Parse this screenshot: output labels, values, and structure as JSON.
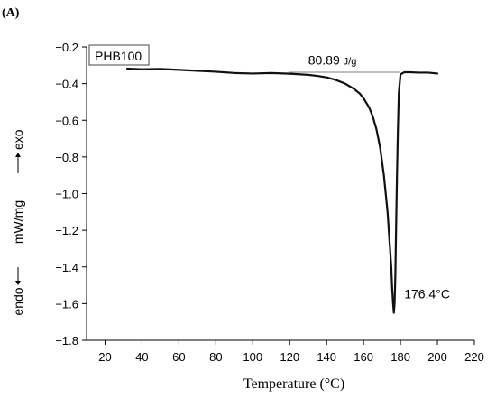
{
  "chart_data": {
    "type": "line",
    "panel_label": "(A)",
    "legend": "PHB100",
    "xlabel": "Temperature (°C)",
    "ylabel": {
      "left": "endo",
      "middle": "mW/mg",
      "right": "exo"
    },
    "xlim": [
      10,
      220
    ],
    "ylim": [
      -1.8,
      -0.2
    ],
    "xticks": [
      20,
      40,
      60,
      80,
      100,
      120,
      140,
      160,
      180,
      200,
      220
    ],
    "yticks": [
      -0.2,
      -0.4,
      -0.6,
      -0.8,
      -1.0,
      -1.2,
      -1.4,
      -1.6,
      -1.8
    ],
    "ytick_labels": [
      "−0.2",
      "−0.4",
      "−0.6",
      "−0.8",
      "−1.0",
      "−1.2",
      "−1.4",
      "−1.6",
      "−1.8"
    ],
    "series": [
      {
        "x": [
          32,
          40,
          50,
          60,
          70,
          80,
          90,
          100,
          110,
          120,
          130,
          135,
          140,
          145,
          150,
          155,
          158,
          160,
          163,
          165,
          167,
          169,
          171,
          172,
          173,
          174,
          175,
          175.5,
          176,
          176.4,
          176.8,
          177.2,
          177.6,
          178.1,
          178.6,
          179.1,
          180,
          182,
          185,
          190,
          195,
          200
        ],
        "y": [
          -0.318,
          -0.322,
          -0.32,
          -0.325,
          -0.33,
          -0.335,
          -0.342,
          -0.345,
          -0.342,
          -0.346,
          -0.352,
          -0.358,
          -0.366,
          -0.38,
          -0.4,
          -0.43,
          -0.455,
          -0.48,
          -0.53,
          -0.58,
          -0.65,
          -0.75,
          -0.9,
          -1.0,
          -1.1,
          -1.25,
          -1.4,
          -1.52,
          -1.6,
          -1.65,
          -1.6,
          -1.45,
          -1.2,
          -0.9,
          -0.65,
          -0.45,
          -0.35,
          -0.338,
          -0.338,
          -0.34,
          -0.34,
          -0.345
        ]
      }
    ],
    "baseline": {
      "x": [
        120,
        180
      ],
      "y": [
        -0.338,
        -0.338
      ]
    },
    "annotations": {
      "enthalpy_value": "80.89",
      "enthalpy_unit": "J/g",
      "peak_label": "176.4°C",
      "enthalpy_pos": [
        130,
        -0.295
      ],
      "peak_pos": [
        182,
        -1.57
      ]
    }
  }
}
